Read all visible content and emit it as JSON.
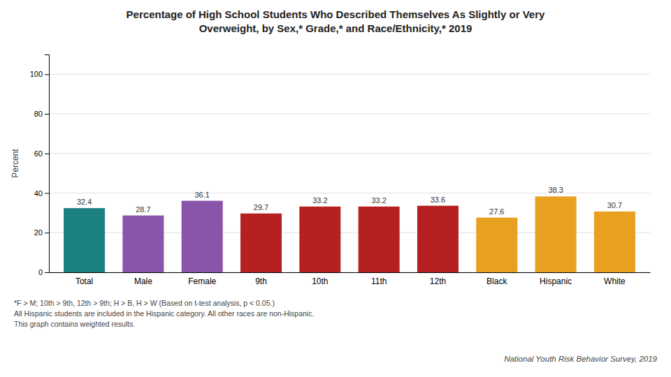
{
  "chart_data": {
    "type": "bar",
    "title": [
      "Percentage of High School Students Who Described Themselves As Slightly or Very",
      "Overweight, by Sex,* Grade,* and Race/Ethnicity,* 2019"
    ],
    "categories": [
      "Total",
      "Male",
      "Female",
      "9th",
      "10th",
      "11th",
      "12th",
      "Black",
      "Hispanic",
      "White"
    ],
    "values": [
      32.4,
      28.7,
      36.1,
      29.7,
      33.2,
      33.2,
      33.6,
      27.6,
      38.3,
      30.7
    ],
    "colors": [
      "#1a8080",
      "#8855aa",
      "#8855aa",
      "#b52020",
      "#b52020",
      "#b52020",
      "#b52020",
      "#e8a020",
      "#e8a020",
      "#e8a020"
    ],
    "ylabel": "Percent",
    "ylim": [
      0,
      110
    ],
    "yticks": [
      0,
      20,
      40,
      60,
      80,
      100
    ],
    "grid": true,
    "data_labels": true,
    "annotations": [
      "*F > M; 10th > 9th, 12th > 9th; H > B, H > W (Based on t-test analysis, p < 0.05.)",
      "All Hispanic students are included in the Hispanic category.  All other races are non-Hispanic.",
      "This graph contains weighted results.",
      "National Youth Risk Behavior Survey, 2019"
    ]
  }
}
